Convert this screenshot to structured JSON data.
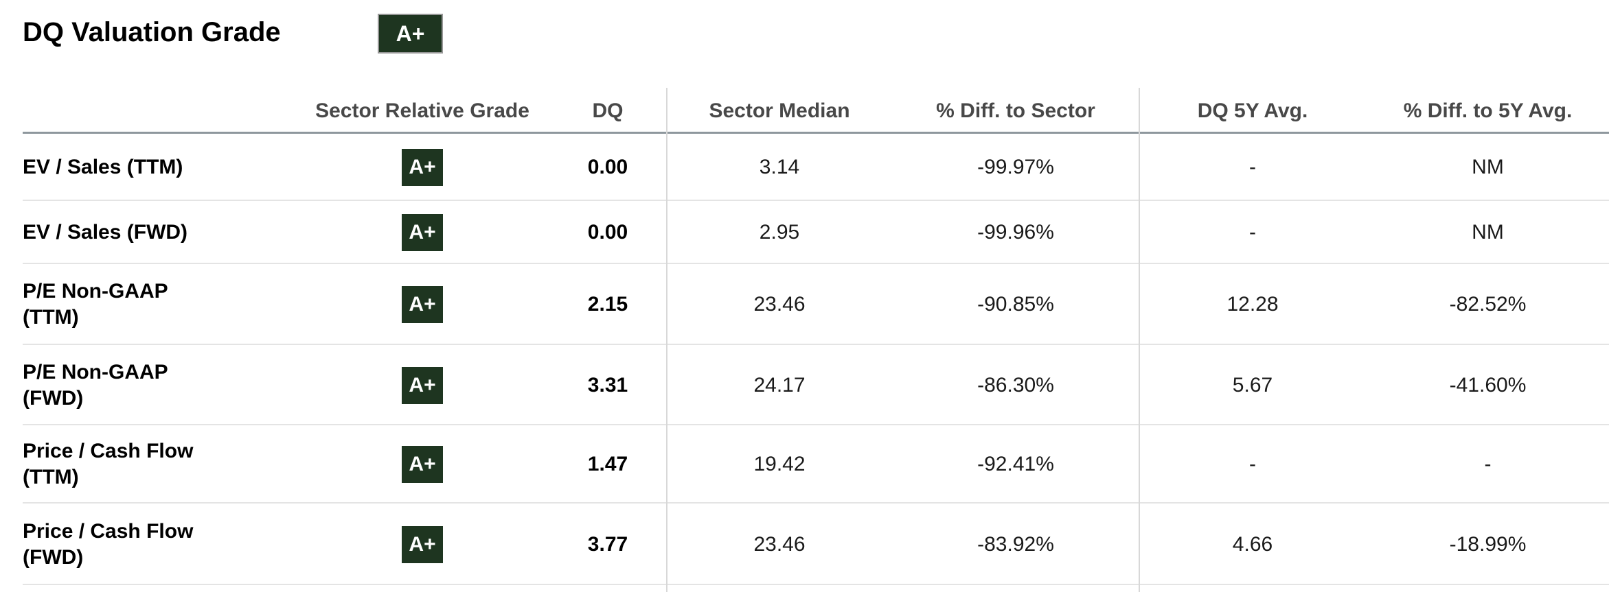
{
  "header": {
    "title": "DQ Valuation Grade",
    "overall_grade": "A+"
  },
  "table": {
    "columns": {
      "metric": "",
      "grade": "Sector Relative Grade",
      "dq": "DQ",
      "sector_median": "Sector Median",
      "diff_sector": "% Diff. to Sector",
      "avg_5y": "DQ 5Y Avg.",
      "diff_5y": "% Diff. to 5Y Avg."
    },
    "rows": [
      {
        "metric": "EV / Sales (TTM)",
        "grade": "A+",
        "dq": "0.00",
        "sector_median": "3.14",
        "diff_sector": "-99.97%",
        "avg_5y": "-",
        "diff_5y": "NM"
      },
      {
        "metric": "EV / Sales (FWD)",
        "grade": "A+",
        "dq": "0.00",
        "sector_median": "2.95",
        "diff_sector": "-99.96%",
        "avg_5y": "-",
        "diff_5y": "NM"
      },
      {
        "metric": "P/E Non-GAAP\n(TTM)",
        "grade": "A+",
        "dq": "2.15",
        "sector_median": "23.46",
        "diff_sector": "-90.85%",
        "avg_5y": "12.28",
        "diff_5y": "-82.52%"
      },
      {
        "metric": "P/E Non-GAAP\n(FWD)",
        "grade": "A+",
        "dq": "3.31",
        "sector_median": "24.17",
        "diff_sector": "-86.30%",
        "avg_5y": "5.67",
        "diff_5y": "-41.60%"
      },
      {
        "metric": "Price / Cash Flow\n(TTM)",
        "grade": "A+",
        "dq": "1.47",
        "sector_median": "19.42",
        "diff_sector": "-92.41%",
        "avg_5y": "-",
        "diff_5y": "-"
      },
      {
        "metric": "Price / Cash Flow\n(FWD)",
        "grade": "A+",
        "dq": "3.77",
        "sector_median": "23.46",
        "diff_sector": "-83.92%",
        "avg_5y": "4.66",
        "diff_5y": "-18.99%"
      }
    ]
  },
  "colors": {
    "grade_badge_bg": "#1e3520",
    "grade_badge_text": "#ffffff"
  }
}
